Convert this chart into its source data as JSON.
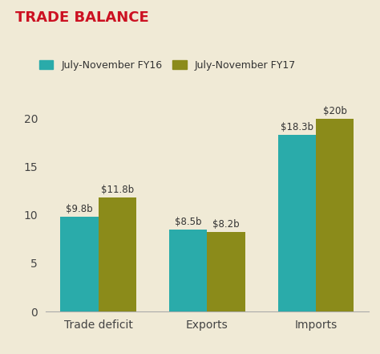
{
  "title": "TRADE BALANCE",
  "title_color": "#cc1122",
  "background_color": "#f0ead6",
  "categories": [
    "Trade deficit",
    "Exports",
    "Imports"
  ],
  "fy16_values": [
    9.8,
    8.5,
    18.3
  ],
  "fy17_values": [
    11.8,
    8.2,
    20.0
  ],
  "fy16_labels": [
    "$9.8b",
    "$8.5b",
    "$18.3b"
  ],
  "fy17_labels": [
    "$11.8b",
    "$8.2b",
    "$20b"
  ],
  "fy16_color": "#2aabaa",
  "fy17_color": "#8b8b1a",
  "legend_fy16": "July-November FY16",
  "legend_fy17": "July-November FY17",
  "ylim": [
    0,
    22
  ],
  "yticks": [
    0,
    5,
    10,
    15,
    20
  ],
  "bar_width": 0.35,
  "label_fontsize": 8.5,
  "title_fontsize": 13,
  "axis_label_fontsize": 10,
  "legend_fontsize": 9,
  "tick_label_color": "#444444",
  "label_color": "#333333"
}
